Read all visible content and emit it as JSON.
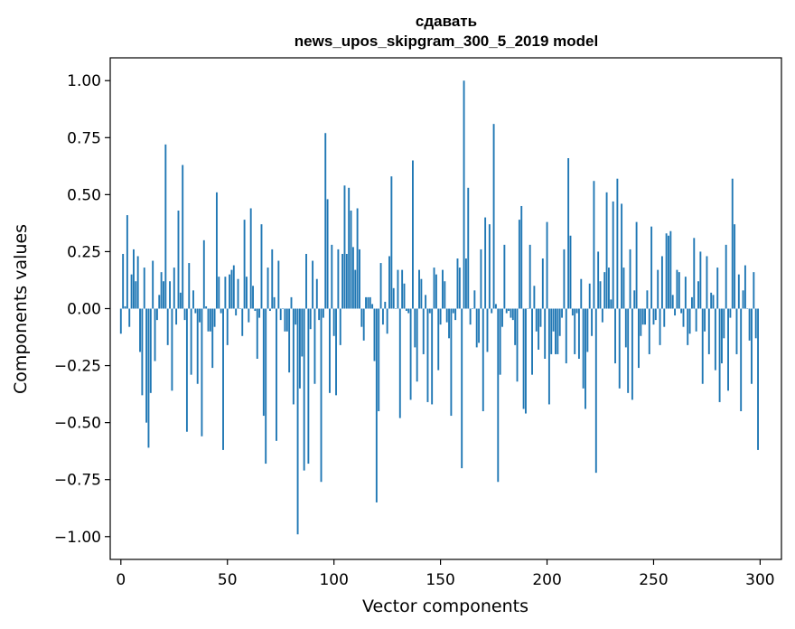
{
  "chart_data": {
    "type": "bar",
    "title": "сдавать",
    "subtitle": "news_upos_skipgram_300_5_2019 model",
    "xlabel": "Vector components",
    "ylabel": "Components values",
    "xlim": [
      -5,
      310
    ],
    "ylim": [
      -1.1,
      1.1
    ],
    "x_ticks": [
      0,
      50,
      100,
      150,
      200,
      250,
      300
    ],
    "x_tick_labels": [
      "0",
      "50",
      "100",
      "150",
      "200",
      "250",
      "300"
    ],
    "y_ticks": [
      1.0,
      0.75,
      0.5,
      0.25,
      0.0,
      -0.25,
      -0.5,
      -0.75,
      -1.0
    ],
    "y_tick_labels": [
      "1.00",
      "0.75",
      "0.50",
      "0.25",
      "0.00",
      "−0.25",
      "−0.50",
      "−0.75",
      "−1.00"
    ],
    "grid": false,
    "bar_color": "#1f77b4",
    "series": [
      {
        "values": [
          -0.11,
          0.24,
          0.01,
          0.41,
          -0.08,
          0.15,
          0.26,
          0.12,
          0.23,
          -0.19,
          -0.38,
          0.18,
          -0.5,
          -0.61,
          -0.37,
          0.21,
          -0.23,
          -0.05,
          0.06,
          0.16,
          0.12,
          0.72,
          -0.16,
          0.12,
          -0.36,
          0.18,
          -0.07,
          0.43,
          0.07,
          0.63,
          -0.05,
          -0.54,
          0.2,
          -0.29,
          0.08,
          -0.02,
          -0.33,
          -0.06,
          -0.56,
          0.3,
          0.01,
          -0.1,
          -0.1,
          -0.26,
          -0.08,
          0.51,
          0.14,
          -0.02,
          -0.62,
          0.14,
          -0.16,
          0.15,
          0.17,
          0.19,
          -0.03,
          0.13,
          0.0,
          -0.12,
          0.39,
          0.14,
          -0.06,
          0.44,
          0.1,
          -0.01,
          -0.22,
          -0.04,
          0.37,
          -0.47,
          -0.68,
          0.18,
          -0.01,
          0.26,
          0.05,
          -0.58,
          0.21,
          -0.05,
          0.0,
          -0.1,
          -0.1,
          -0.28,
          0.05,
          -0.42,
          -0.07,
          -0.99,
          -0.35,
          -0.21,
          -0.71,
          0.24,
          -0.68,
          -0.09,
          0.21,
          -0.33,
          0.13,
          -0.05,
          -0.76,
          -0.04,
          0.77,
          0.48,
          -0.37,
          0.28,
          -0.12,
          -0.38,
          0.26,
          -0.16,
          0.24,
          0.54,
          0.24,
          0.53,
          0.43,
          0.27,
          0.17,
          0.44,
          0.26,
          -0.08,
          -0.14,
          0.05,
          0.05,
          0.05,
          0.02,
          -0.23,
          -0.85,
          -0.45,
          0.2,
          -0.07,
          0.03,
          -0.11,
          0.23,
          0.58,
          0.09,
          0.0,
          0.17,
          -0.48,
          0.17,
          0.11,
          -0.01,
          -0.02,
          -0.4,
          0.65,
          -0.17,
          -0.32,
          0.17,
          0.13,
          -0.2,
          0.06,
          -0.41,
          -0.02,
          -0.42,
          0.18,
          0.15,
          -0.27,
          -0.07,
          0.17,
          0.12,
          -0.06,
          -0.13,
          -0.47,
          -0.02,
          -0.05,
          0.22,
          0.18,
          -0.7,
          1.0,
          0.22,
          0.53,
          -0.07,
          0.0,
          0.08,
          -0.17,
          -0.15,
          0.26,
          -0.45,
          0.4,
          -0.19,
          0.37,
          -0.02,
          0.81,
          0.02,
          -0.76,
          -0.29,
          -0.08,
          0.28,
          -0.02,
          -0.01,
          -0.04,
          -0.05,
          -0.16,
          -0.32,
          0.39,
          0.45,
          -0.44,
          -0.46,
          0.0,
          0.28,
          -0.29,
          0.1,
          -0.1,
          -0.18,
          -0.08,
          0.22,
          -0.22,
          0.38,
          -0.42,
          -0.2,
          -0.1,
          -0.2,
          -0.2,
          -0.12,
          -0.04,
          0.26,
          -0.24,
          0.66,
          0.32,
          -0.03,
          -0.2,
          -0.02,
          -0.22,
          0.13,
          -0.35,
          -0.44,
          -0.19,
          0.11,
          -0.12,
          0.56,
          -0.72,
          0.25,
          0.12,
          -0.06,
          0.16,
          0.51,
          0.18,
          0.04,
          0.47,
          -0.24,
          0.57,
          -0.35,
          0.46,
          0.18,
          -0.17,
          -0.37,
          0.26,
          -0.4,
          0.08,
          0.38,
          -0.26,
          -0.12,
          -0.07,
          -0.07,
          0.08,
          -0.2,
          0.36,
          -0.07,
          -0.05,
          0.17,
          -0.16,
          0.23,
          -0.08,
          0.33,
          0.32,
          0.34,
          0.06,
          -0.03,
          0.17,
          0.16,
          -0.02,
          -0.08,
          0.14,
          -0.16,
          -0.11,
          0.05,
          0.31,
          -0.1,
          0.12,
          0.25,
          -0.33,
          -0.1,
          0.23,
          -0.2,
          0.07,
          0.06,
          -0.27,
          0.18,
          -0.41,
          -0.24,
          -0.13,
          0.28,
          -0.36,
          -0.04,
          0.57,
          0.37,
          -0.2,
          0.15,
          -0.45,
          0.08,
          0.19,
          0.0,
          -0.14,
          -0.33,
          0.16,
          -0.13,
          -0.62
        ]
      }
    ]
  }
}
